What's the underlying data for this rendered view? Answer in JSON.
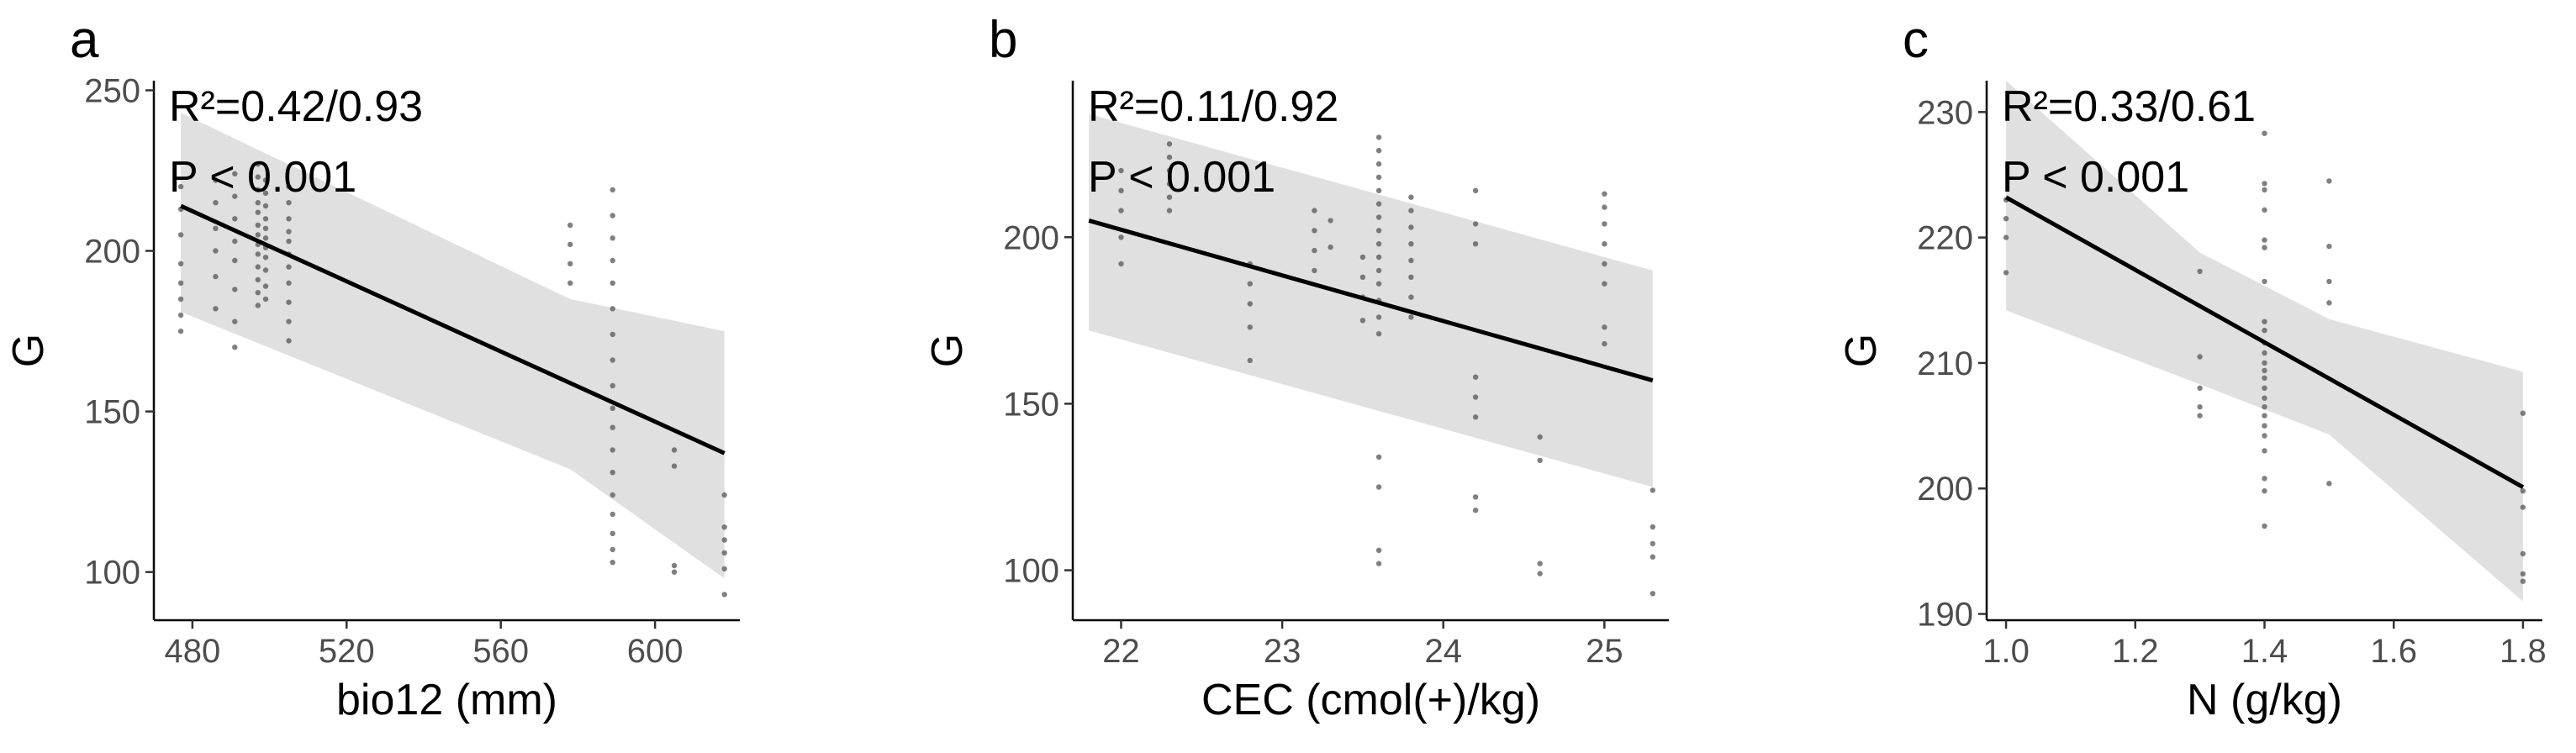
{
  "chart_data": [
    {
      "type": "scatter",
      "panel_label": "a",
      "title": "",
      "xlabel": "bio12 (mm)",
      "ylabel": "G",
      "annotation": [
        "R²=0.42/0.93",
        "P < 0.001"
      ],
      "xlim": [
        470,
        622
      ],
      "ylim": [
        85,
        253
      ],
      "x_ticks": [
        480,
        520,
        560,
        600
      ],
      "y_ticks": [
        100,
        150,
        200,
        250
      ],
      "grid": false,
      "fit_line": {
        "x": [
          477,
          618
        ],
        "y": [
          214,
          137
        ]
      },
      "ci_band": {
        "x": [
          477,
          578,
          618
        ],
        "upper": [
          243,
          185,
          175
        ],
        "lower": [
          181,
          132,
          98
        ]
      },
      "points": [
        [
          477,
          175
        ],
        [
          477,
          180
        ],
        [
          477,
          185
        ],
        [
          477,
          190
        ],
        [
          477,
          196
        ],
        [
          477,
          205
        ],
        [
          477,
          213
        ],
        [
          477,
          220
        ],
        [
          486,
          182
        ],
        [
          486,
          192
        ],
        [
          486,
          200
        ],
        [
          486,
          207
        ],
        [
          486,
          215
        ],
        [
          486,
          222
        ],
        [
          491,
          170
        ],
        [
          491,
          178
        ],
        [
          491,
          188
        ],
        [
          491,
          197
        ],
        [
          491,
          203
        ],
        [
          491,
          210
        ],
        [
          491,
          217
        ],
        [
          491,
          224
        ],
        [
          497,
          183
        ],
        [
          497,
          187
        ],
        [
          497,
          191
        ],
        [
          497,
          195
        ],
        [
          497,
          199
        ],
        [
          497,
          202
        ],
        [
          497,
          205
        ],
        [
          497,
          208
        ],
        [
          497,
          212
        ],
        [
          497,
          215
        ],
        [
          497,
          219
        ],
        [
          497,
          223
        ],
        [
          497,
          227
        ],
        [
          499,
          185
        ],
        [
          499,
          189
        ],
        [
          499,
          194
        ],
        [
          499,
          198
        ],
        [
          499,
          201
        ],
        [
          499,
          204
        ],
        [
          499,
          207
        ],
        [
          499,
          210
        ],
        [
          499,
          214
        ],
        [
          499,
          218
        ],
        [
          499,
          222
        ],
        [
          505,
          172
        ],
        [
          505,
          178
        ],
        [
          505,
          184
        ],
        [
          505,
          190
        ],
        [
          505,
          195
        ],
        [
          505,
          199
        ],
        [
          505,
          203
        ],
        [
          505,
          206
        ],
        [
          505,
          210
        ],
        [
          505,
          215
        ],
        [
          505,
          220
        ],
        [
          578,
          190
        ],
        [
          578,
          196
        ],
        [
          578,
          202
        ],
        [
          578,
          208
        ],
        [
          589,
          103
        ],
        [
          589,
          107
        ],
        [
          589,
          112
        ],
        [
          589,
          118
        ],
        [
          589,
          124
        ],
        [
          589,
          131
        ],
        [
          589,
          138
        ],
        [
          589,
          145
        ],
        [
          589,
          151
        ],
        [
          589,
          158
        ],
        [
          589,
          166
        ],
        [
          589,
          174
        ],
        [
          589,
          182
        ],
        [
          589,
          190
        ],
        [
          589,
          197
        ],
        [
          589,
          204
        ],
        [
          589,
          211
        ],
        [
          589,
          219
        ],
        [
          605,
          100
        ],
        [
          605,
          102
        ],
        [
          605,
          133
        ],
        [
          605,
          138
        ],
        [
          618,
          93
        ],
        [
          618,
          101
        ],
        [
          618,
          106
        ],
        [
          618,
          110
        ],
        [
          618,
          114
        ],
        [
          618,
          124
        ]
      ]
    },
    {
      "type": "scatter",
      "panel_label": "b",
      "title": "",
      "xlabel": "CEC (cmol(+)/kg)",
      "ylabel": "G",
      "annotation": [
        "R²=0.11/0.92",
        "P < 0.001"
      ],
      "xlim": [
        21.7,
        25.4
      ],
      "ylim": [
        85,
        247
      ],
      "x_ticks": [
        22,
        23,
        24,
        25
      ],
      "y_ticks": [
        100,
        150,
        200
      ],
      "grid": false,
      "fit_line": {
        "x": [
          21.8,
          25.3
        ],
        "y": [
          205,
          157
        ]
      },
      "ci_band": {
        "x": [
          21.8,
          25.3
        ],
        "upper": [
          237,
          190
        ],
        "lower": [
          172,
          125
        ]
      },
      "points": [
        [
          22.0,
          192
        ],
        [
          22.0,
          200
        ],
        [
          22.0,
          208
        ],
        [
          22.0,
          214
        ],
        [
          22.0,
          220
        ],
        [
          22.3,
          208
        ],
        [
          22.3,
          212
        ],
        [
          22.3,
          216
        ],
        [
          22.3,
          220
        ],
        [
          22.3,
          224
        ],
        [
          22.3,
          228
        ],
        [
          22.8,
          163
        ],
        [
          22.8,
          173
        ],
        [
          22.8,
          180
        ],
        [
          22.8,
          186
        ],
        [
          22.8,
          192
        ],
        [
          23.2,
          190
        ],
        [
          23.2,
          196
        ],
        [
          23.2,
          202
        ],
        [
          23.2,
          208
        ],
        [
          23.3,
          197
        ],
        [
          23.3,
          205
        ],
        [
          23.5,
          175
        ],
        [
          23.5,
          182
        ],
        [
          23.5,
          188
        ],
        [
          23.5,
          194
        ],
        [
          23.6,
          102
        ],
        [
          23.6,
          106
        ],
        [
          23.6,
          125
        ],
        [
          23.6,
          134
        ],
        [
          23.6,
          171
        ],
        [
          23.6,
          176
        ],
        [
          23.6,
          181
        ],
        [
          23.6,
          186
        ],
        [
          23.6,
          190
        ],
        [
          23.6,
          194
        ],
        [
          23.6,
          198
        ],
        [
          23.6,
          202
        ],
        [
          23.6,
          206
        ],
        [
          23.6,
          210
        ],
        [
          23.6,
          214
        ],
        [
          23.6,
          218
        ],
        [
          23.6,
          222
        ],
        [
          23.6,
          226
        ],
        [
          23.6,
          230
        ],
        [
          23.8,
          176
        ],
        [
          23.8,
          182
        ],
        [
          23.8,
          188
        ],
        [
          23.8,
          193
        ],
        [
          23.8,
          198
        ],
        [
          23.8,
          203
        ],
        [
          23.8,
          208
        ],
        [
          23.8,
          212
        ],
        [
          24.2,
          118
        ],
        [
          24.2,
          122
        ],
        [
          24.2,
          146
        ],
        [
          24.2,
          152
        ],
        [
          24.2,
          158
        ],
        [
          24.2,
          198
        ],
        [
          24.2,
          204
        ],
        [
          24.2,
          214
        ],
        [
          24.6,
          99
        ],
        [
          24.6,
          102
        ],
        [
          24.6,
          133
        ],
        [
          24.6,
          140
        ],
        [
          25.0,
          168
        ],
        [
          25.0,
          173
        ],
        [
          25.0,
          186
        ],
        [
          25.0,
          192
        ],
        [
          25.0,
          198
        ],
        [
          25.0,
          204
        ],
        [
          25.0,
          209
        ],
        [
          25.0,
          213
        ],
        [
          25.3,
          93
        ],
        [
          25.3,
          104
        ],
        [
          25.3,
          108
        ],
        [
          25.3,
          113
        ],
        [
          25.3,
          124
        ]
      ]
    },
    {
      "type": "scatter",
      "panel_label": "c",
      "title": "",
      "xlabel": "N (g/kg)",
      "ylabel": "G",
      "annotation": [
        "R²=0.33/0.61",
        "P < 0.001"
      ],
      "xlim": [
        0.97,
        1.83
      ],
      "ylim": [
        189.5,
        232.5
      ],
      "x_ticks": [
        1.0,
        1.2,
        1.4,
        1.6,
        1.8
      ],
      "x_tick_labels": [
        "1.0",
        "1.2",
        "1.4",
        "1.6",
        "1.8"
      ],
      "y_ticks": [
        190,
        200,
        210,
        220,
        230
      ],
      "grid": false,
      "fit_line": {
        "x": [
          1.0,
          1.8
        ],
        "y": [
          223.2,
          200.1
        ]
      },
      "ci_band": {
        "x": [
          1.0,
          1.3,
          1.5,
          1.8
        ],
        "upper": [
          232.5,
          218.8,
          213.5,
          209.3
        ],
        "lower": [
          214.2,
          208.3,
          204.3,
          191.0
        ]
      },
      "points": [
        [
          1.0,
          217.2
        ],
        [
          1.0,
          220.0
        ],
        [
          1.0,
          221.5
        ],
        [
          1.0,
          223.0
        ],
        [
          1.3,
          205.8
        ],
        [
          1.3,
          206.5
        ],
        [
          1.3,
          208.0
        ],
        [
          1.3,
          210.5
        ],
        [
          1.3,
          217.3
        ],
        [
          1.4,
          197.0
        ],
        [
          1.4,
          199.8
        ],
        [
          1.4,
          200.8
        ],
        [
          1.4,
          203.0
        ],
        [
          1.4,
          204.2
        ],
        [
          1.4,
          205.0
        ],
        [
          1.4,
          205.8
        ],
        [
          1.4,
          206.5
        ],
        [
          1.4,
          207.2
        ],
        [
          1.4,
          208.0
        ],
        [
          1.4,
          208.8
        ],
        [
          1.4,
          209.4
        ],
        [
          1.4,
          210.0
        ],
        [
          1.4,
          210.8
        ],
        [
          1.4,
          211.6
        ],
        [
          1.4,
          212.6
        ],
        [
          1.4,
          213.3
        ],
        [
          1.4,
          216.5
        ],
        [
          1.4,
          219.2
        ],
        [
          1.4,
          219.8
        ],
        [
          1.4,
          222.2
        ],
        [
          1.4,
          223.8
        ],
        [
          1.4,
          224.3
        ],
        [
          1.4,
          228.3
        ],
        [
          1.5,
          200.4
        ],
        [
          1.5,
          214.8
        ],
        [
          1.5,
          216.5
        ],
        [
          1.5,
          219.3
        ],
        [
          1.5,
          224.5
        ],
        [
          1.8,
          192.6
        ],
        [
          1.8,
          193.2
        ],
        [
          1.8,
          194.8
        ],
        [
          1.8,
          198.5
        ],
        [
          1.8,
          199.8
        ],
        [
          1.8,
          206.0
        ]
      ]
    }
  ]
}
